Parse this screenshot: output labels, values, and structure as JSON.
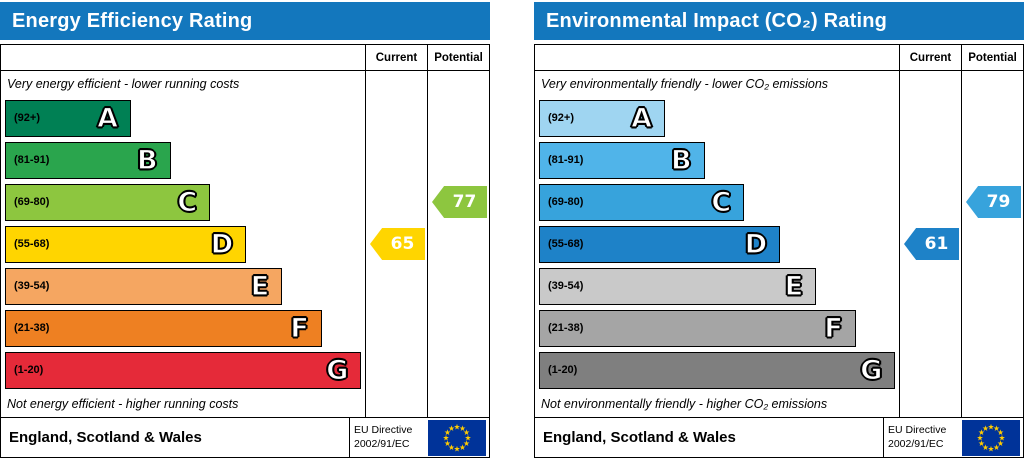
{
  "accent_colors": {
    "header_blue": "#1377bd",
    "eu_flag_blue": "#003399",
    "eu_flag_star_yellow": "#ffcc00"
  },
  "charts": [
    {
      "title": "Energy Efficiency Rating",
      "columns": {
        "current": "Current",
        "potential": "Potential"
      },
      "top_note": "Very energy efficient - lower running costs",
      "bottom_note": "Not energy efficient - higher running costs",
      "bands": [
        {
          "range": "(92+)",
          "letter": "A",
          "color": "#008054",
          "width_pct": 35
        },
        {
          "range": "(81-91)",
          "letter": "B",
          "color": "#2aa54d",
          "width_pct": 46
        },
        {
          "range": "(69-80)",
          "letter": "C",
          "color": "#8dc63f",
          "width_pct": 57
        },
        {
          "range": "(55-68)",
          "letter": "D",
          "color": "#ffd500",
          "width_pct": 67
        },
        {
          "range": "(39-54)",
          "letter": "E",
          "color": "#f5a661",
          "width_pct": 77
        },
        {
          "range": "(21-38)",
          "letter": "F",
          "color": "#ee8022",
          "width_pct": 88
        },
        {
          "range": "(1-20)",
          "letter": "G",
          "color": "#e52a39",
          "width_pct": 99
        }
      ],
      "current": {
        "value": "65",
        "band_letter": "D",
        "band_index": 3,
        "color": "#ffd500"
      },
      "potential": {
        "value": "77",
        "band_letter": "C",
        "band_index": 2,
        "color": "#8dc63f"
      },
      "footer": {
        "region": "England, Scotland & Wales",
        "directive_line1": "EU Directive",
        "directive_line2": "2002/91/EC",
        "flag_icon": "eu-flag"
      }
    },
    {
      "title": "Environmental Impact (CO₂) Rating",
      "columns": {
        "current": "Current",
        "potential": "Potential"
      },
      "top_note": "Very environmentally friendly - lower CO₂ emissions",
      "bottom_note": "Not environmentally friendly - higher CO₂ emissions",
      "bands": [
        {
          "range": "(92+)",
          "letter": "A",
          "color": "#9fd5f1",
          "width_pct": 35
        },
        {
          "range": "(81-91)",
          "letter": "B",
          "color": "#50b4e9",
          "width_pct": 46
        },
        {
          "range": "(69-80)",
          "letter": "C",
          "color": "#37a3dc",
          "width_pct": 57
        },
        {
          "range": "(55-68)",
          "letter": "D",
          "color": "#1e82c8",
          "width_pct": 67
        },
        {
          "range": "(39-54)",
          "letter": "E",
          "color": "#c9c9c9",
          "width_pct": 77
        },
        {
          "range": "(21-38)",
          "letter": "F",
          "color": "#a5a5a5",
          "width_pct": 88
        },
        {
          "range": "(1-20)",
          "letter": "G",
          "color": "#7f7f7f",
          "width_pct": 99
        }
      ],
      "current": {
        "value": "61",
        "band_letter": "D",
        "band_index": 3,
        "color": "#1e82c8"
      },
      "potential": {
        "value": "79",
        "band_letter": "C",
        "band_index": 2,
        "color": "#37a3dc"
      },
      "footer": {
        "region": "England, Scotland & Wales",
        "directive_line1": "EU Directive",
        "directive_line2": "2002/91/EC",
        "flag_icon": "eu-flag"
      }
    }
  ],
  "chart_data": [
    {
      "type": "bar",
      "title": "Energy Efficiency Rating",
      "categories": [
        "A (92+)",
        "B (81-91)",
        "C (69-80)",
        "D (55-68)",
        "E (39-54)",
        "F (21-38)",
        "G (1-20)"
      ],
      "series": [
        {
          "name": "Current",
          "value": 65,
          "band": "D"
        },
        {
          "name": "Potential",
          "value": 77,
          "band": "C"
        }
      ],
      "scale_min": 1,
      "scale_max": 100,
      "top_annotation": "Very energy efficient - lower running costs",
      "bottom_annotation": "Not energy efficient - higher running costs",
      "footer": "England, Scotland & Wales — EU Directive 2002/91/EC"
    },
    {
      "type": "bar",
      "title": "Environmental Impact (CO₂) Rating",
      "categories": [
        "A (92+)",
        "B (81-91)",
        "C (69-80)",
        "D (55-68)",
        "E (39-54)",
        "F (21-38)",
        "G (1-20)"
      ],
      "series": [
        {
          "name": "Current",
          "value": 61,
          "band": "D"
        },
        {
          "name": "Potential",
          "value": 79,
          "band": "C"
        }
      ],
      "scale_min": 1,
      "scale_max": 100,
      "top_annotation": "Very environmentally friendly - lower CO₂ emissions",
      "bottom_annotation": "Not environmentally friendly - higher CO₂ emissions",
      "footer": "England, Scotland & Wales — EU Directive 2002/91/EC"
    }
  ]
}
